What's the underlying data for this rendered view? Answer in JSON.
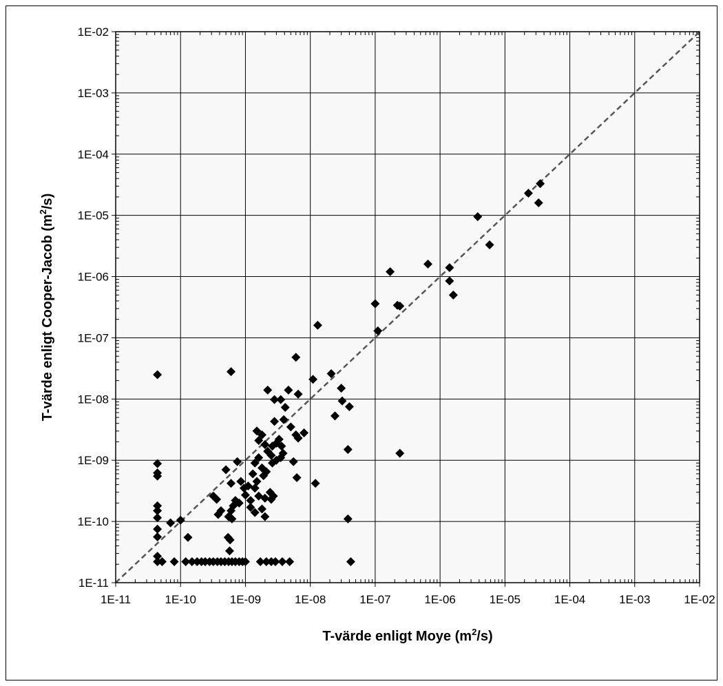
{
  "chart_data": {
    "type": "scatter",
    "title": "",
    "xlabel": {
      "main": "T-värde enligt Moye (m",
      "sup": "2",
      "tail": "/s)"
    },
    "ylabel": {
      "main": "T-värde enligt Cooper-Jacob (m",
      "sup": "2",
      "tail": "/s)"
    },
    "x_scale": "log",
    "y_scale": "log",
    "xlim": [
      1e-11,
      0.01
    ],
    "ylim": [
      1e-11,
      0.01
    ],
    "x_ticks": [
      {
        "value": 1e-11,
        "label": "1E-11"
      },
      {
        "value": 1e-10,
        "label": "1E-10"
      },
      {
        "value": 1e-09,
        "label": "1E-09"
      },
      {
        "value": 1e-08,
        "label": "1E-08"
      },
      {
        "value": 1e-07,
        "label": "1E-07"
      },
      {
        "value": 1e-06,
        "label": "1E-06"
      },
      {
        "value": 1e-05,
        "label": "1E-05"
      },
      {
        "value": 0.0001,
        "label": "1E-04"
      },
      {
        "value": 0.001,
        "label": "1E-03"
      },
      {
        "value": 0.01,
        "label": "1E-02"
      }
    ],
    "y_ticks": [
      {
        "value": 1e-11,
        "label": "1E-11"
      },
      {
        "value": 1e-10,
        "label": "1E-10"
      },
      {
        "value": 1e-09,
        "label": "1E-09"
      },
      {
        "value": 1e-08,
        "label": "1E-08"
      },
      {
        "value": 1e-07,
        "label": "1E-07"
      },
      {
        "value": 1e-06,
        "label": "1E-06"
      },
      {
        "value": 1e-05,
        "label": "1E-05"
      },
      {
        "value": 0.0001,
        "label": "1E-04"
      },
      {
        "value": 0.001,
        "label": "1E-03"
      },
      {
        "value": 0.01,
        "label": "1E-02"
      }
    ],
    "grid": true,
    "legend": "none",
    "reference_line": {
      "type": "y=x",
      "style": "dashed",
      "color": "#555555"
    },
    "plot_background": "#f8f8f8",
    "marker_color": "#000000",
    "marker": "diamond",
    "points": [
      [
        2.3e-05,
        2.3e-05
      ],
      [
        3.3e-05,
        1.6e-05
      ],
      [
        3.5e-05,
        3.3e-05
      ],
      [
        3.8e-06,
        9.5e-06
      ],
      [
        5.8e-06,
        3.3e-06
      ],
      [
        1.7e-07,
        1.2e-06
      ],
      [
        6.5e-07,
        1.6e-06
      ],
      [
        1.4e-06,
        1.4e-06
      ],
      [
        1.4e-06,
        8.5e-07
      ],
      [
        1.6e-06,
        5e-07
      ],
      [
        1e-07,
        3.6e-07
      ],
      [
        2.2e-07,
        3.4e-07
      ],
      [
        2.4e-07,
        3.3e-07
      ],
      [
        1.1e-07,
        1.3e-07
      ],
      [
        1.3e-08,
        1.6e-07
      ],
      [
        6e-09,
        4.8e-08
      ],
      [
        6e-10,
        2.8e-08
      ],
      [
        4.4e-11,
        2.5e-08
      ],
      [
        1.1e-08,
        2.1e-08
      ],
      [
        2.1e-08,
        2.6e-08
      ],
      [
        3e-08,
        1.5e-08
      ],
      [
        3.1e-08,
        9.3e-09
      ],
      [
        4e-08,
        7.5e-09
      ],
      [
        2.4e-08,
        5.3e-09
      ],
      [
        3.8e-08,
        1.5e-09
      ],
      [
        2.4e-07,
        1.3e-09
      ],
      [
        1.2e-08,
        4.2e-10
      ],
      [
        3.8e-08,
        1.1e-10
      ],
      [
        4.2e-08,
        2.2e-11
      ],
      [
        2.2e-09,
        1.4e-08
      ],
      [
        2.8e-09,
        9.8e-09
      ],
      [
        3.5e-09,
        9.8e-09
      ],
      [
        4.6e-09,
        1.4e-08
      ],
      [
        6.5e-09,
        1.2e-08
      ],
      [
        4.1e-09,
        7.3e-09
      ],
      [
        3.9e-09,
        4.6e-09
      ],
      [
        2.8e-09,
        4.3e-09
      ],
      [
        5e-09,
        3.5e-09
      ],
      [
        8e-09,
        2.8e-09
      ],
      [
        6e-09,
        2.6e-09
      ],
      [
        6.5e-09,
        2.3e-09
      ],
      [
        5.5e-09,
        9.5e-10
      ],
      [
        6.2e-09,
        5.2e-10
      ],
      [
        1.5e-09,
        3e-09
      ],
      [
        1.8e-09,
        2.6e-09
      ],
      [
        1.6e-09,
        2.1e-09
      ],
      [
        2e-09,
        1.8e-09
      ],
      [
        2.6e-09,
        1.7e-09
      ],
      [
        3e-09,
        1.9e-09
      ],
      [
        3.3e-09,
        2.2e-09
      ],
      [
        3.6e-09,
        1.7e-09
      ],
      [
        2.2e-09,
        1.4e-09
      ],
      [
        2.5e-09,
        1.2e-09
      ],
      [
        3e-09,
        1e-09
      ],
      [
        3.5e-09,
        1.1e-09
      ],
      [
        3.8e-09,
        1.3e-09
      ],
      [
        2.6e-09,
        9e-10
      ],
      [
        1.6e-09,
        1.1e-09
      ],
      [
        1.4e-09,
        9e-10
      ],
      [
        1.8e-09,
        7.5e-10
      ],
      [
        1.9e-09,
        5.6e-10
      ],
      [
        2.1e-09,
        6.5e-10
      ],
      [
        1.3e-09,
        6e-10
      ],
      [
        1.5e-09,
        4.5e-10
      ],
      [
        1.1e-09,
        3.8e-10
      ],
      [
        1.4e-09,
        3.5e-10
      ],
      [
        1e-09,
        2.7e-10
      ],
      [
        1.2e-09,
        2.2e-10
      ],
      [
        1.6e-09,
        2.6e-10
      ],
      [
        2e-09,
        2.4e-10
      ],
      [
        2.4e-09,
        3e-10
      ],
      [
        2.7e-09,
        2.6e-10
      ],
      [
        2.5e-09,
        2.3e-10
      ],
      [
        1.8e-09,
        1.6e-10
      ],
      [
        1.4e-09,
        1.4e-10
      ],
      [
        1.2e-09,
        1.7e-10
      ],
      [
        2e-09,
        1.2e-10
      ],
      [
        8e-10,
        2e-10
      ],
      [
        7e-10,
        2.2e-10
      ],
      [
        6.5e-10,
        1.8e-10
      ],
      [
        6e-10,
        1.5e-10
      ],
      [
        5.5e-10,
        1.2e-10
      ],
      [
        7.5e-10,
        9.5e-10
      ],
      [
        8.5e-10,
        4.5e-10
      ],
      [
        9.5e-10,
        3.5e-10
      ],
      [
        6e-10,
        4.2e-10
      ],
      [
        5e-10,
        7e-10
      ],
      [
        3.2e-10,
        2.6e-10
      ],
      [
        3.6e-10,
        2.3e-10
      ],
      [
        3.8e-10,
        1.3e-10
      ],
      [
        4.2e-10,
        1.5e-10
      ],
      [
        6.2e-10,
        1.1e-10
      ],
      [
        5.4e-10,
        5.5e-11
      ],
      [
        5.8e-10,
        5e-11
      ],
      [
        5.7e-10,
        3.3e-11
      ],
      [
        1.3e-10,
        5.5e-11
      ],
      [
        1e-10,
        1.05e-10
      ],
      [
        7e-11,
        9.5e-11
      ],
      [
        4.4e-11,
        8.8e-10
      ],
      [
        4.4e-11,
        6.2e-10
      ],
      [
        4.4e-11,
        5.5e-10
      ],
      [
        4.4e-11,
        1.8e-10
      ],
      [
        4.4e-11,
        1.5e-10
      ],
      [
        4.4e-11,
        1.15e-10
      ],
      [
        4.4e-11,
        7.5e-11
      ],
      [
        4.4e-11,
        5.6e-11
      ],
      [
        4.4e-11,
        2.7e-11
      ],
      [
        4.4e-11,
        2.2e-11
      ],
      [
        5.2e-11,
        2.2e-11
      ],
      [
        8e-11,
        2.2e-11
      ],
      [
        1.2e-10,
        2.2e-11
      ],
      [
        1.5e-10,
        2.2e-11
      ],
      [
        1.8e-10,
        2.2e-11
      ],
      [
        2.1e-10,
        2.2e-11
      ],
      [
        2.4e-10,
        2.2e-11
      ],
      [
        2.8e-10,
        2.2e-11
      ],
      [
        3.2e-10,
        2.2e-11
      ],
      [
        3.7e-10,
        2.2e-11
      ],
      [
        4.2e-10,
        2.2e-11
      ],
      [
        4.8e-10,
        2.2e-11
      ],
      [
        5.5e-10,
        2.2e-11
      ],
      [
        6.2e-10,
        2.2e-11
      ],
      [
        7e-10,
        2.2e-11
      ],
      [
        8e-10,
        2.2e-11
      ],
      [
        9e-10,
        2.2e-11
      ],
      [
        1e-09,
        2.2e-11
      ],
      [
        1.7e-09,
        2.2e-11
      ],
      [
        2.1e-09,
        2.2e-11
      ],
      [
        2.5e-09,
        2.2e-11
      ],
      [
        2.9e-09,
        2.2e-11
      ],
      [
        3.7e-09,
        2.2e-11
      ],
      [
        4.8e-09,
        2.2e-11
      ]
    ]
  }
}
